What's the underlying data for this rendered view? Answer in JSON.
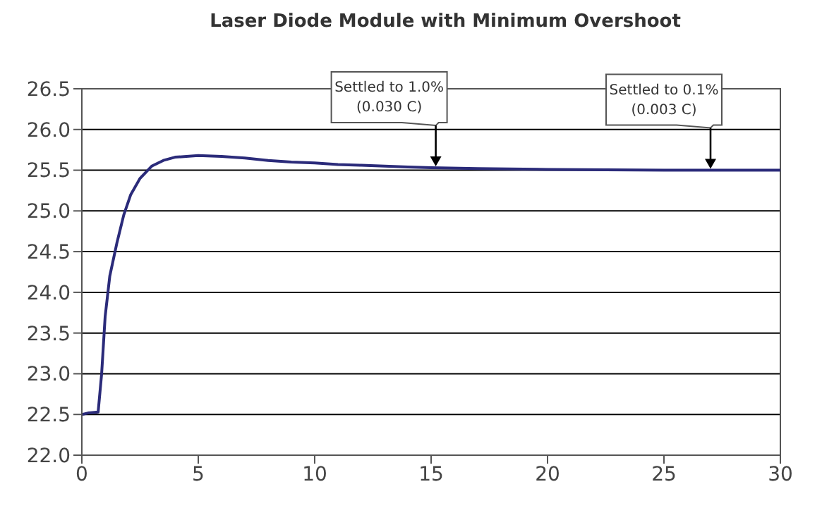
{
  "chart_data": {
    "type": "line",
    "title": "Laser Diode Module with Minimum Overshoot",
    "x": [
      0,
      0.3,
      0.7,
      0.85,
      1.0,
      1.2,
      1.5,
      1.8,
      2.1,
      2.5,
      3,
      3.5,
      4,
      5,
      6,
      7,
      8,
      9,
      10,
      11,
      12,
      13,
      14,
      15,
      17,
      20,
      25,
      30
    ],
    "series": [
      {
        "color": "#2b2b7a",
        "values": [
          22.5,
          22.52,
          22.53,
          23.0,
          23.7,
          24.2,
          24.6,
          24.95,
          25.2,
          25.4,
          25.55,
          25.62,
          25.66,
          25.68,
          25.67,
          25.65,
          25.62,
          25.6,
          25.59,
          25.57,
          25.56,
          25.55,
          25.54,
          25.53,
          25.52,
          25.51,
          25.5,
          25.5
        ]
      }
    ],
    "xlim": [
      0,
      30
    ],
    "xticks": [
      0,
      5,
      10,
      15,
      20,
      25,
      30
    ],
    "ylim": [
      22.0,
      26.5
    ],
    "yticks": [
      {
        "value": 22.0,
        "label": "22.0"
      },
      {
        "value": 22.5,
        "label": "22.5"
      },
      {
        "value": 23.0,
        "label": "23.0"
      },
      {
        "value": 23.5,
        "label": "23.5"
      },
      {
        "value": 24.0,
        "label": "24.0"
      },
      {
        "value": 24.5,
        "label": "24.5"
      },
      {
        "value": 25.0,
        "label": "25.0"
      },
      {
        "value": 25.5,
        "label": "25.5"
      },
      {
        "value": 26.0,
        "label": "26.0"
      },
      {
        "value": 26.5,
        "label": "26.5"
      }
    ],
    "grid": "y",
    "marker": "none",
    "line_style": "solid",
    "annotations": [
      {
        "text": "Settled to 1.0%\n(0.030 C)",
        "x": 15.2,
        "y": 25.53
      },
      {
        "text": "Settled to 0.1%\n(0.003 C)",
        "x": 27,
        "y": 25.5
      }
    ]
  }
}
